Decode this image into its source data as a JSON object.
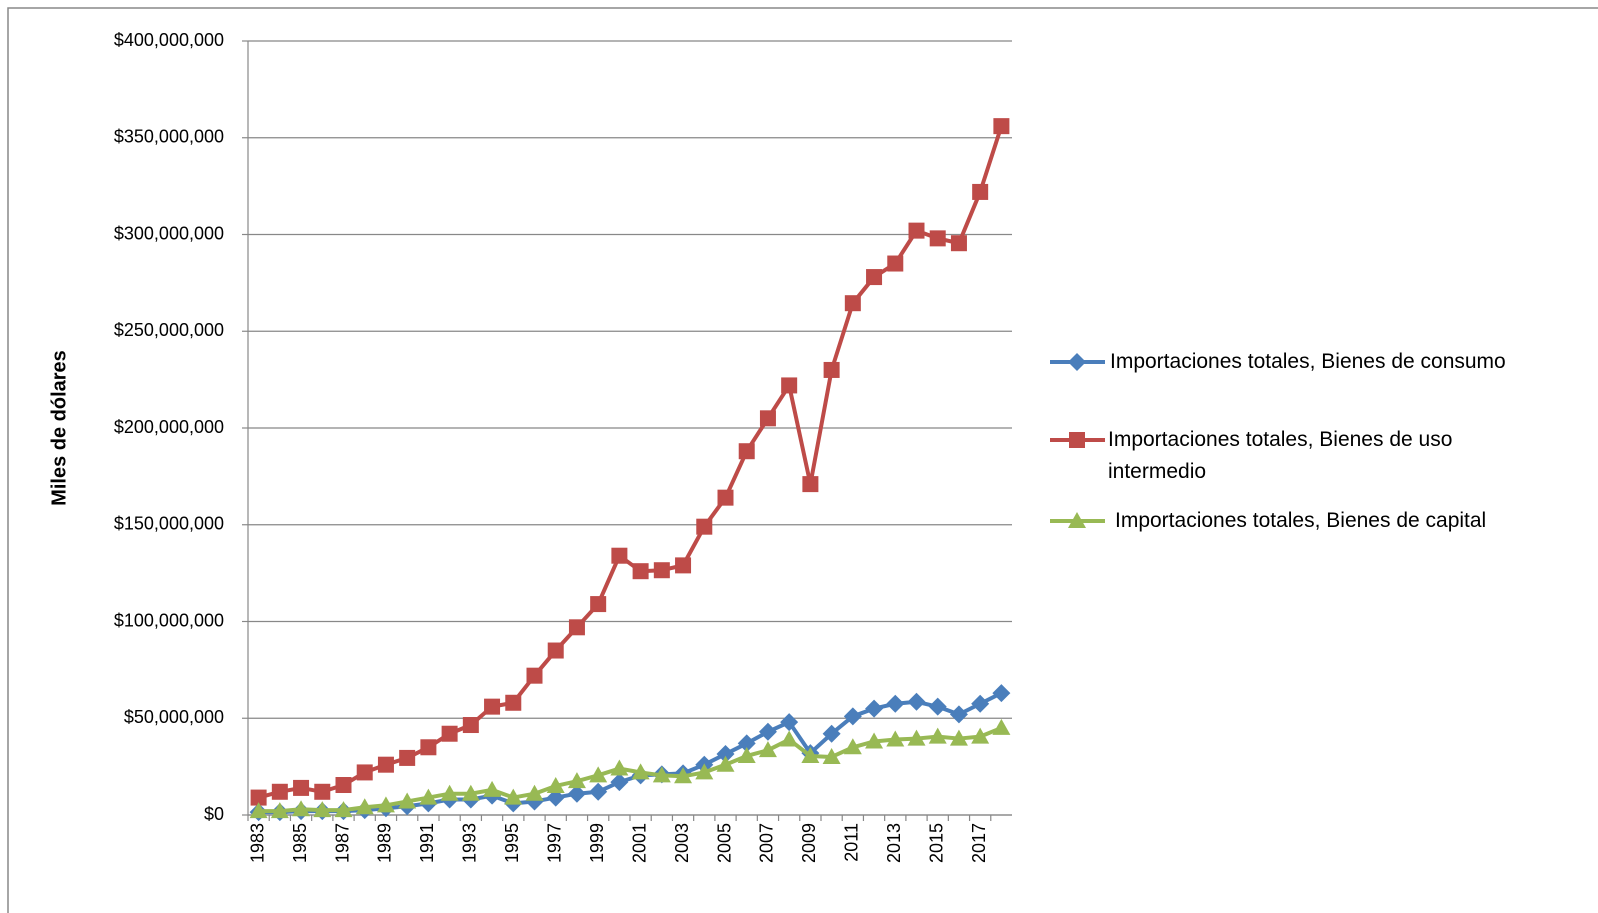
{
  "chart_data": {
    "type": "line",
    "y_label": "Miles de dólares",
    "categories": [
      "1983",
      null,
      "1985",
      null,
      "1987",
      null,
      "1989",
      null,
      "1991",
      null,
      "1993",
      null,
      "1995",
      null,
      "1997",
      null,
      "1999",
      null,
      "2001",
      null,
      "2003",
      null,
      "2005",
      null,
      "2007",
      null,
      "2009",
      null,
      "2011",
      null,
      "2013",
      null,
      "2015",
      null,
      "2017",
      null
    ],
    "series": [
      {
        "name": "Importaciones totales, Bienes de consumo",
        "color": "#4a7ebb",
        "marker": "diamond",
        "values": [
          1500000,
          1500000,
          2000000,
          2000000,
          2000000,
          2500000,
          3500000,
          4500000,
          6000000,
          8000000,
          8000000,
          10000000,
          6000000,
          7000000,
          9000000,
          11000000,
          12000000,
          17000000,
          20500000,
          21000000,
          21500000,
          26000000,
          31500000,
          37000000,
          43000000,
          48000000,
          32000000,
          42000000,
          51000000,
          55000000,
          57500000,
          58500000,
          56000000,
          52000000,
          57500000,
          63000000
        ]
      },
      {
        "name": "Importaciones totales, Bienes de uso intermedio",
        "color": "#be4b48",
        "marker": "square",
        "values": [
          9000000,
          12000000,
          14000000,
          12000000,
          15500000,
          22000000,
          26000000,
          29500000,
          35000000,
          42000000,
          46500000,
          56000000,
          58000000,
          72000000,
          85000000,
          97000000,
          109000000,
          134000000,
          126000000,
          126500000,
          129000000,
          149000000,
          164000000,
          188000000,
          205000000,
          222000000,
          171000000,
          230000000,
          264500000,
          278000000,
          285000000,
          302000000,
          298000000,
          295500000,
          322000000,
          356000000
        ]
      },
      {
        "name": "Importaciones totales, Bienes de capital",
        "color": "#98b954",
        "marker": "triangle",
        "values": [
          2000000,
          2000000,
          3000000,
          2500000,
          2500000,
          4000000,
          5000000,
          7000000,
          9000000,
          11000000,
          11000000,
          13000000,
          9000000,
          11000000,
          15000000,
          17500000,
          20500000,
          24000000,
          22000000,
          20500000,
          20000000,
          22000000,
          26000000,
          30500000,
          33500000,
          39000000,
          30500000,
          30000000,
          35000000,
          38000000,
          39000000,
          39500000,
          40500000,
          39500000,
          40500000,
          45000000
        ]
      }
    ],
    "ylim": [
      0,
      400000000
    ],
    "yticks": [
      {
        "value": 0,
        "label": "$0"
      },
      {
        "value": 50000000,
        "label": "$50,000,000"
      },
      {
        "value": 100000000,
        "label": "$100,000,000"
      },
      {
        "value": 150000000,
        "label": "$150,000,000"
      },
      {
        "value": 200000000,
        "label": "$200,000,000"
      },
      {
        "value": 250000000,
        "label": "$250,000,000"
      },
      {
        "value": 300000000,
        "label": "$300,000,000"
      },
      {
        "value": 350000000,
        "label": "$350,000,000"
      },
      {
        "value": 400000000,
        "label": "$400,000,000"
      }
    ],
    "grid": true,
    "legend": "right"
  }
}
